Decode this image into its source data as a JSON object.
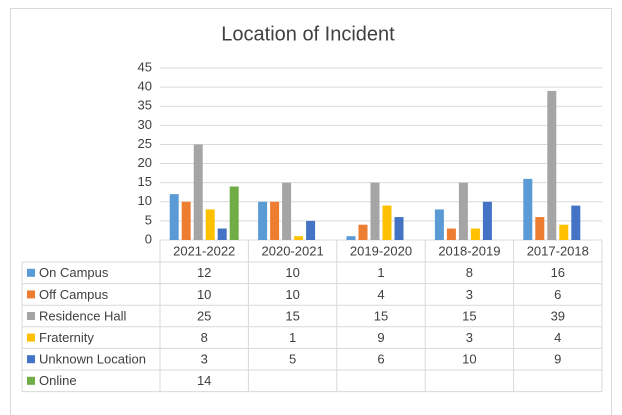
{
  "chart_data": {
    "type": "bar",
    "title": "Location of Incident",
    "categories": [
      "2021-2022",
      "2020-2021",
      "2019-2020",
      "2018-2019",
      "2017-2018"
    ],
    "series": [
      {
        "name": "On Campus",
        "color": "#5b9bd5",
        "values": [
          12,
          10,
          1,
          8,
          16
        ]
      },
      {
        "name": "Off Campus",
        "color": "#ed7d31",
        "values": [
          10,
          10,
          4,
          3,
          6
        ]
      },
      {
        "name": "Residence Hall",
        "color": "#a5a5a5",
        "values": [
          25,
          15,
          15,
          15,
          39
        ]
      },
      {
        "name": "Fraternity",
        "color": "#ffc000",
        "values": [
          8,
          1,
          9,
          3,
          4
        ]
      },
      {
        "name": "Unknown Location",
        "color": "#4472c4",
        "values": [
          3,
          5,
          6,
          10,
          9
        ]
      },
      {
        "name": "Online",
        "color": "#70ad47",
        "values": [
          14,
          null,
          null,
          null,
          null
        ]
      }
    ],
    "ylim": [
      0,
      45
    ],
    "yticks": [
      0,
      5,
      10,
      15,
      20,
      25,
      30,
      35,
      40,
      45
    ],
    "grid": true
  }
}
